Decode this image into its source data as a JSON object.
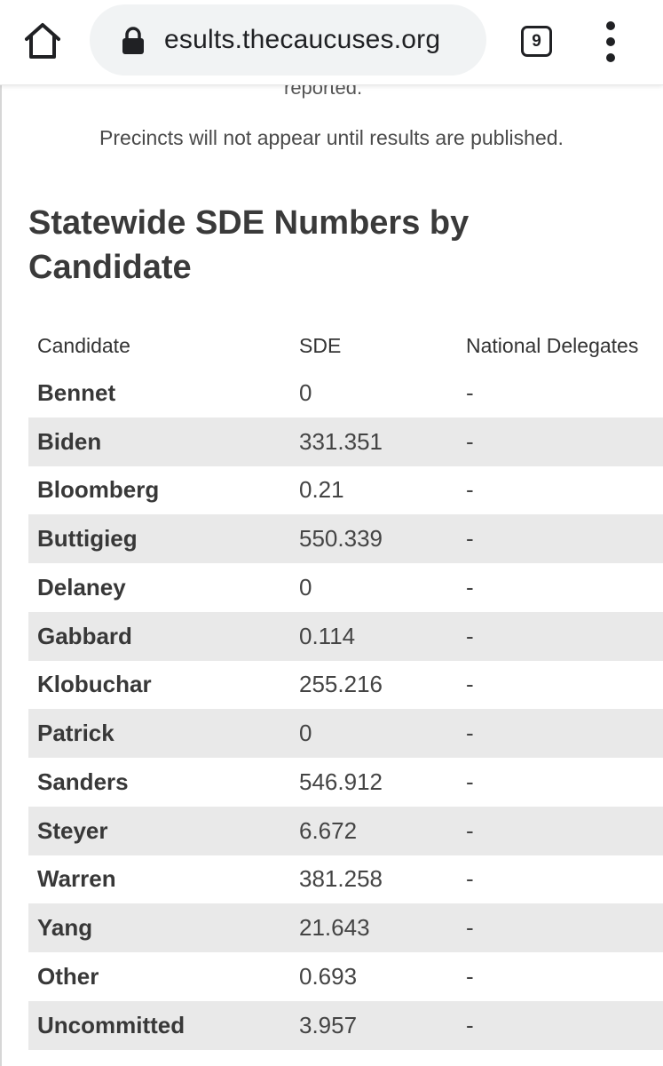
{
  "browser": {
    "url": "esults.thecaucuses.org",
    "tab_count": "9",
    "icons": {
      "home": "home-icon",
      "lock": "lock-icon",
      "tabs": "tab-switcher-icon",
      "menu": "more-vert-icon"
    }
  },
  "page": {
    "cut_off_text": "reported.",
    "notice": "Precincts will not appear until results are published.",
    "heading": "Statewide SDE Numbers by Candidate"
  },
  "table": {
    "headers": [
      "Candidate",
      "SDE",
      "National Delegates"
    ],
    "rows": [
      {
        "candidate": "Bennet",
        "sde": "0",
        "delegates": "-"
      },
      {
        "candidate": "Biden",
        "sde": "331.351",
        "delegates": "-"
      },
      {
        "candidate": "Bloomberg",
        "sde": "0.21",
        "delegates": "-"
      },
      {
        "candidate": "Buttigieg",
        "sde": "550.339",
        "delegates": "-"
      },
      {
        "candidate": "Delaney",
        "sde": "0",
        "delegates": "-"
      },
      {
        "candidate": "Gabbard",
        "sde": "0.114",
        "delegates": "-"
      },
      {
        "candidate": "Klobuchar",
        "sde": "255.216",
        "delegates": "-"
      },
      {
        "candidate": "Patrick",
        "sde": "0",
        "delegates": "-"
      },
      {
        "candidate": "Sanders",
        "sde": "546.912",
        "delegates": "-"
      },
      {
        "candidate": "Steyer",
        "sde": "6.672",
        "delegates": "-"
      },
      {
        "candidate": "Warren",
        "sde": "381.258",
        "delegates": "-"
      },
      {
        "candidate": "Yang",
        "sde": "21.643",
        "delegates": "-"
      },
      {
        "candidate": "Other",
        "sde": "0.693",
        "delegates": "-"
      },
      {
        "candidate": "Uncommitted",
        "sde": "3.957",
        "delegates": "-"
      }
    ]
  },
  "colors": {
    "stripe": "#e9e9e9",
    "omnibox": "#f1f3f4",
    "text": "#3c3c3c"
  }
}
